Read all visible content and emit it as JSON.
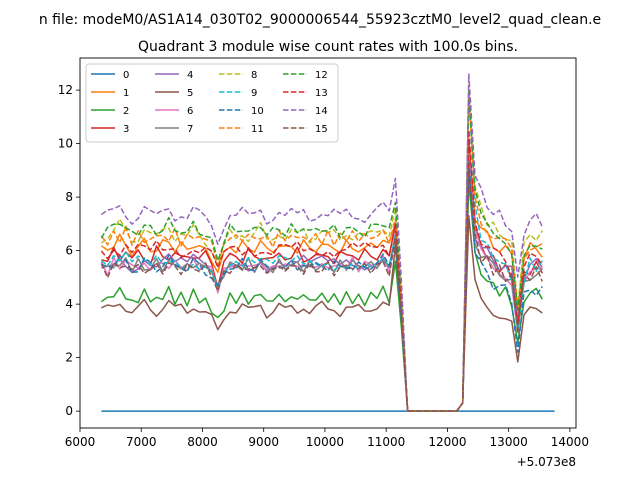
{
  "suptitle": "n file: modeM0/AS1A14_030T02_9000006544_55923cztM0_level2_quad_clean.e",
  "chart_data": {
    "type": "line",
    "title": "Quadrant 3 module wise count rates with 100.0s bins.",
    "xlabel": "",
    "ylabel": "",
    "x_offset_label": "+5.073e8",
    "xlim": [
      6000,
      14100
    ],
    "ylim": [
      -0.63,
      13.2
    ],
    "xticks": [
      6000,
      7000,
      8000,
      9000,
      10000,
      11000,
      12000,
      13000,
      14000
    ],
    "yticks": [
      0,
      2,
      4,
      6,
      8,
      10,
      12
    ],
    "x_start": 6350,
    "x_step": 100,
    "gap_range": [
      11350,
      12150
    ],
    "shapes": [
      [
        0.2,
        0.4,
        0.6,
        1,
        0.5,
        0.1,
        0.3,
        0.8,
        0.4,
        0.2,
        0.6,
        0.9,
        0.3,
        0.5,
        0.2,
        0.7,
        0.4,
        0.1,
        -0.3,
        -1.2,
        -0.2,
        0.5,
        0.3,
        0.6,
        0.2,
        0.4,
        0.8,
        0.1,
        0.3,
        0.6,
        0.2,
        0.5,
        0.3,
        0.7,
        0.2,
        0.4,
        0.6,
        0.3,
        0.5,
        0.2,
        0.6,
        0.3,
        0.4,
        0.2,
        0.5,
        0.7,
        0.9,
        0.4,
        0.3
      ],
      [
        0.5,
        0.1,
        0.7,
        0.3,
        0.9,
        0.2,
        0.6,
        0.4,
        0.1,
        0.8,
        0.3,
        0.5,
        0.7,
        0.2,
        0.4,
        0.6,
        0.3,
        0.5,
        0.1,
        -1.1,
        0,
        0.4,
        0.6,
        0.2,
        0.7,
        0.3,
        0.5,
        0.4,
        0.1,
        0.6,
        0.5,
        0.3,
        0.7,
        0.2,
        0.5,
        0.4,
        0.3,
        0.6,
        0.2,
        0.5,
        0.4,
        0.7,
        0.3,
        0.6,
        0.4,
        0.5,
        0.8,
        0.2,
        0.4
      ]
    ],
    "post_shape": [
      0,
      1.0,
      0.55,
      0.3,
      0.2,
      0.1,
      0.05,
      0,
      -0.1,
      -0.4,
      -0.1,
      0.02,
      0.02,
      0
    ],
    "series": [
      {
        "name": "0",
        "color": "#1f77b4",
        "dash": false,
        "flat": true
      },
      {
        "name": "1",
        "color": "#ff7f0e",
        "dash": false,
        "base": 5.9,
        "amp": 1.0,
        "last": 7.0,
        "peak": 10.2,
        "post": 6.0,
        "variant": 0,
        "seed": 1
      },
      {
        "name": "2",
        "color": "#2ca02c",
        "dash": false,
        "base": 4.0,
        "amp": 1.0,
        "last": 5.6,
        "peak": 8.6,
        "post": 4.4,
        "variant": 0,
        "seed": 2
      },
      {
        "name": "3",
        "color": "#d62728",
        "dash": false,
        "base": 5.5,
        "amp": 1.2,
        "last": 7.0,
        "peak": 10.0,
        "post": 5.3,
        "variant": 1,
        "seed": 3
      },
      {
        "name": "4",
        "color": "#9467bd",
        "dash": false,
        "base": 5.3,
        "amp": 1.0,
        "last": 6.6,
        "peak": 9.3,
        "post": 5.4,
        "variant": 0,
        "seed": 4
      },
      {
        "name": "5",
        "color": "#8c564b",
        "dash": false,
        "base": 3.6,
        "amp": 1.0,
        "last": 6.2,
        "peak": 7.3,
        "post": 3.6,
        "variant": 0,
        "seed": 5
      },
      {
        "name": "6",
        "color": "#e377c2",
        "dash": false,
        "base": 5.2,
        "amp": 1.0,
        "last": 6.7,
        "peak": 9.6,
        "post": 5.2,
        "variant": 1,
        "seed": 6
      },
      {
        "name": "7",
        "color": "#7f7f7f",
        "dash": false,
        "base": 5.2,
        "amp": 1.0,
        "last": 6.5,
        "peak": 9.3,
        "post": 5.1,
        "variant": 1,
        "seed": 7
      },
      {
        "name": "8",
        "color": "#bcbd22",
        "dash": true,
        "base": 6.3,
        "amp": 1.3,
        "last": 7.6,
        "peak": 12.2,
        "post": 6.5,
        "variant": 0,
        "seed": 8
      },
      {
        "name": "9",
        "color": "#17becf",
        "dash": true,
        "base": 5.3,
        "amp": 1.0,
        "last": 6.6,
        "peak": 11.8,
        "post": 5.4,
        "variant": 1,
        "seed": 9
      },
      {
        "name": "10",
        "color": "#1f77b4",
        "dash": true,
        "base": 5.2,
        "amp": 1.0,
        "last": 6.3,
        "peak": 9.4,
        "post": 4.5,
        "variant": 0,
        "seed": 10
      },
      {
        "name": "11",
        "color": "#ff7f0e",
        "dash": true,
        "base": 6.2,
        "amp": 1.2,
        "last": 7.2,
        "peak": 11.8,
        "post": 6.2,
        "variant": 1,
        "seed": 11
      },
      {
        "name": "12",
        "color": "#2ca02c",
        "dash": true,
        "base": 6.5,
        "amp": 1.2,
        "last": 7.8,
        "peak": 12.0,
        "post": 6.1,
        "variant": 0,
        "seed": 12
      },
      {
        "name": "13",
        "color": "#d62728",
        "dash": true,
        "base": 5.8,
        "amp": 1.0,
        "last": 7.0,
        "peak": 10.5,
        "post": 5.6,
        "variant": 1,
        "seed": 13
      },
      {
        "name": "14",
        "color": "#9467bd",
        "dash": true,
        "base": 7.1,
        "amp": 1.1,
        "last": 8.7,
        "peak": 12.6,
        "post": 7.1,
        "variant": 0,
        "seed": 14
      },
      {
        "name": "15",
        "color": "#8c564b",
        "dash": true,
        "base": 5.1,
        "amp": 1.0,
        "last": 6.5,
        "peak": 9.0,
        "post": 5.1,
        "variant": 1,
        "seed": 15
      }
    ]
  }
}
